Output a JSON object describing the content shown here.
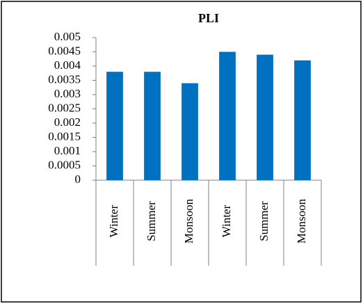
{
  "chart_data": {
    "type": "bar",
    "title": "PLI",
    "categories": [
      "Winter",
      "Summer",
      "Monsoon",
      "Winter",
      "Summer",
      "Monsoon"
    ],
    "values": [
      0.0038,
      0.0038,
      0.0034,
      0.0045,
      0.0044,
      0.0042
    ],
    "color": "#0070c0",
    "ylim": [
      0,
      0.005
    ],
    "yticks": [
      0,
      0.0005,
      0.001,
      0.0015,
      0.002,
      0.0025,
      0.003,
      0.0035,
      0.004,
      0.0045,
      0.005
    ],
    "grid": false
  }
}
